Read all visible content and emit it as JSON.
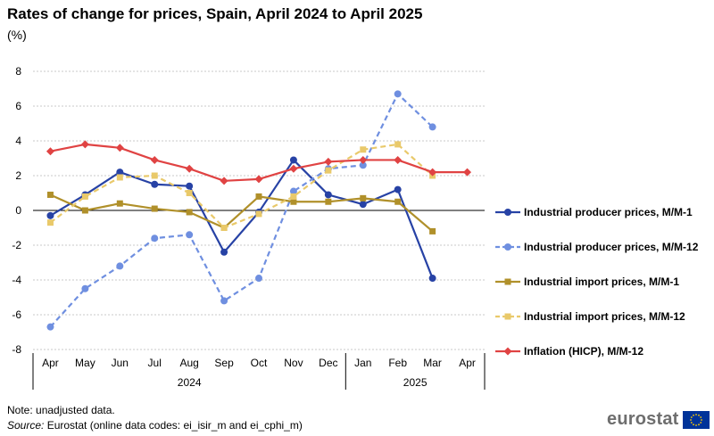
{
  "header": {
    "title": "Rates of change for prices, Spain, April 2024 to April 2025",
    "subtitle": "(%)"
  },
  "chart_data": {
    "type": "line",
    "categories": [
      "Apr",
      "May",
      "Jun",
      "Jul",
      "Aug",
      "Sep",
      "Oct",
      "Nov",
      "Dec",
      "Jan",
      "Feb",
      "Mar",
      "Apr"
    ],
    "year_groups": [
      {
        "label": "2024",
        "from": 0,
        "to": 8
      },
      {
        "label": "2025",
        "from": 9,
        "to": 12
      }
    ],
    "ylim": [
      -8,
      8
    ],
    "yticks": [
      -8,
      -6,
      -4,
      -2,
      0,
      2,
      4,
      6,
      8
    ],
    "grid": "horizontal-dashed",
    "legend_position": "right",
    "series": [
      {
        "name": "Industrial producer prices, M/M-1",
        "color": "#2742A5",
        "dash": "solid",
        "marker": "circle",
        "values": [
          -0.3,
          0.9,
          2.2,
          1.5,
          1.4,
          -2.4,
          -0.1,
          2.9,
          0.9,
          0.35,
          1.2,
          -3.9,
          null
        ]
      },
      {
        "name": "Industrial producer prices, M/M-12",
        "color": "#6F8FE0",
        "dash": "dashed",
        "marker": "circle",
        "values": [
          -6.7,
          -4.5,
          -3.2,
          -1.6,
          -1.4,
          -5.2,
          -3.9,
          1.1,
          2.4,
          2.6,
          6.7,
          4.8,
          null
        ]
      },
      {
        "name": "Industrial import prices, M/M-1",
        "color": "#B0902A",
        "dash": "solid",
        "marker": "square",
        "values": [
          0.9,
          0.0,
          0.4,
          0.1,
          -0.1,
          -1.0,
          0.8,
          0.5,
          0.5,
          0.7,
          0.5,
          -1.2,
          null
        ]
      },
      {
        "name": "Industrial import prices, M/M-12",
        "color": "#E9C96A",
        "dash": "dashed",
        "marker": "square",
        "values": [
          -0.7,
          0.8,
          1.9,
          2.0,
          1.0,
          -1.0,
          -0.2,
          0.8,
          2.3,
          3.5,
          3.8,
          2.0,
          null
        ]
      },
      {
        "name": "Inflation (HICP), M/M-12",
        "color": "#E04343",
        "dash": "solid",
        "marker": "diamond",
        "values": [
          3.4,
          3.8,
          3.6,
          2.9,
          2.4,
          1.7,
          1.8,
          2.4,
          2.8,
          2.9,
          2.9,
          2.2,
          2.2
        ]
      }
    ]
  },
  "footnote": {
    "note": "Note: unadjusted data.",
    "source_label": "Source:",
    "source_text": " Eurostat (online data codes: ei_isir_m and ei_cphi_m)"
  },
  "brand": {
    "name": "eurostat",
    "flag_blue": "#003399",
    "flag_gold": "#FFCC00"
  }
}
